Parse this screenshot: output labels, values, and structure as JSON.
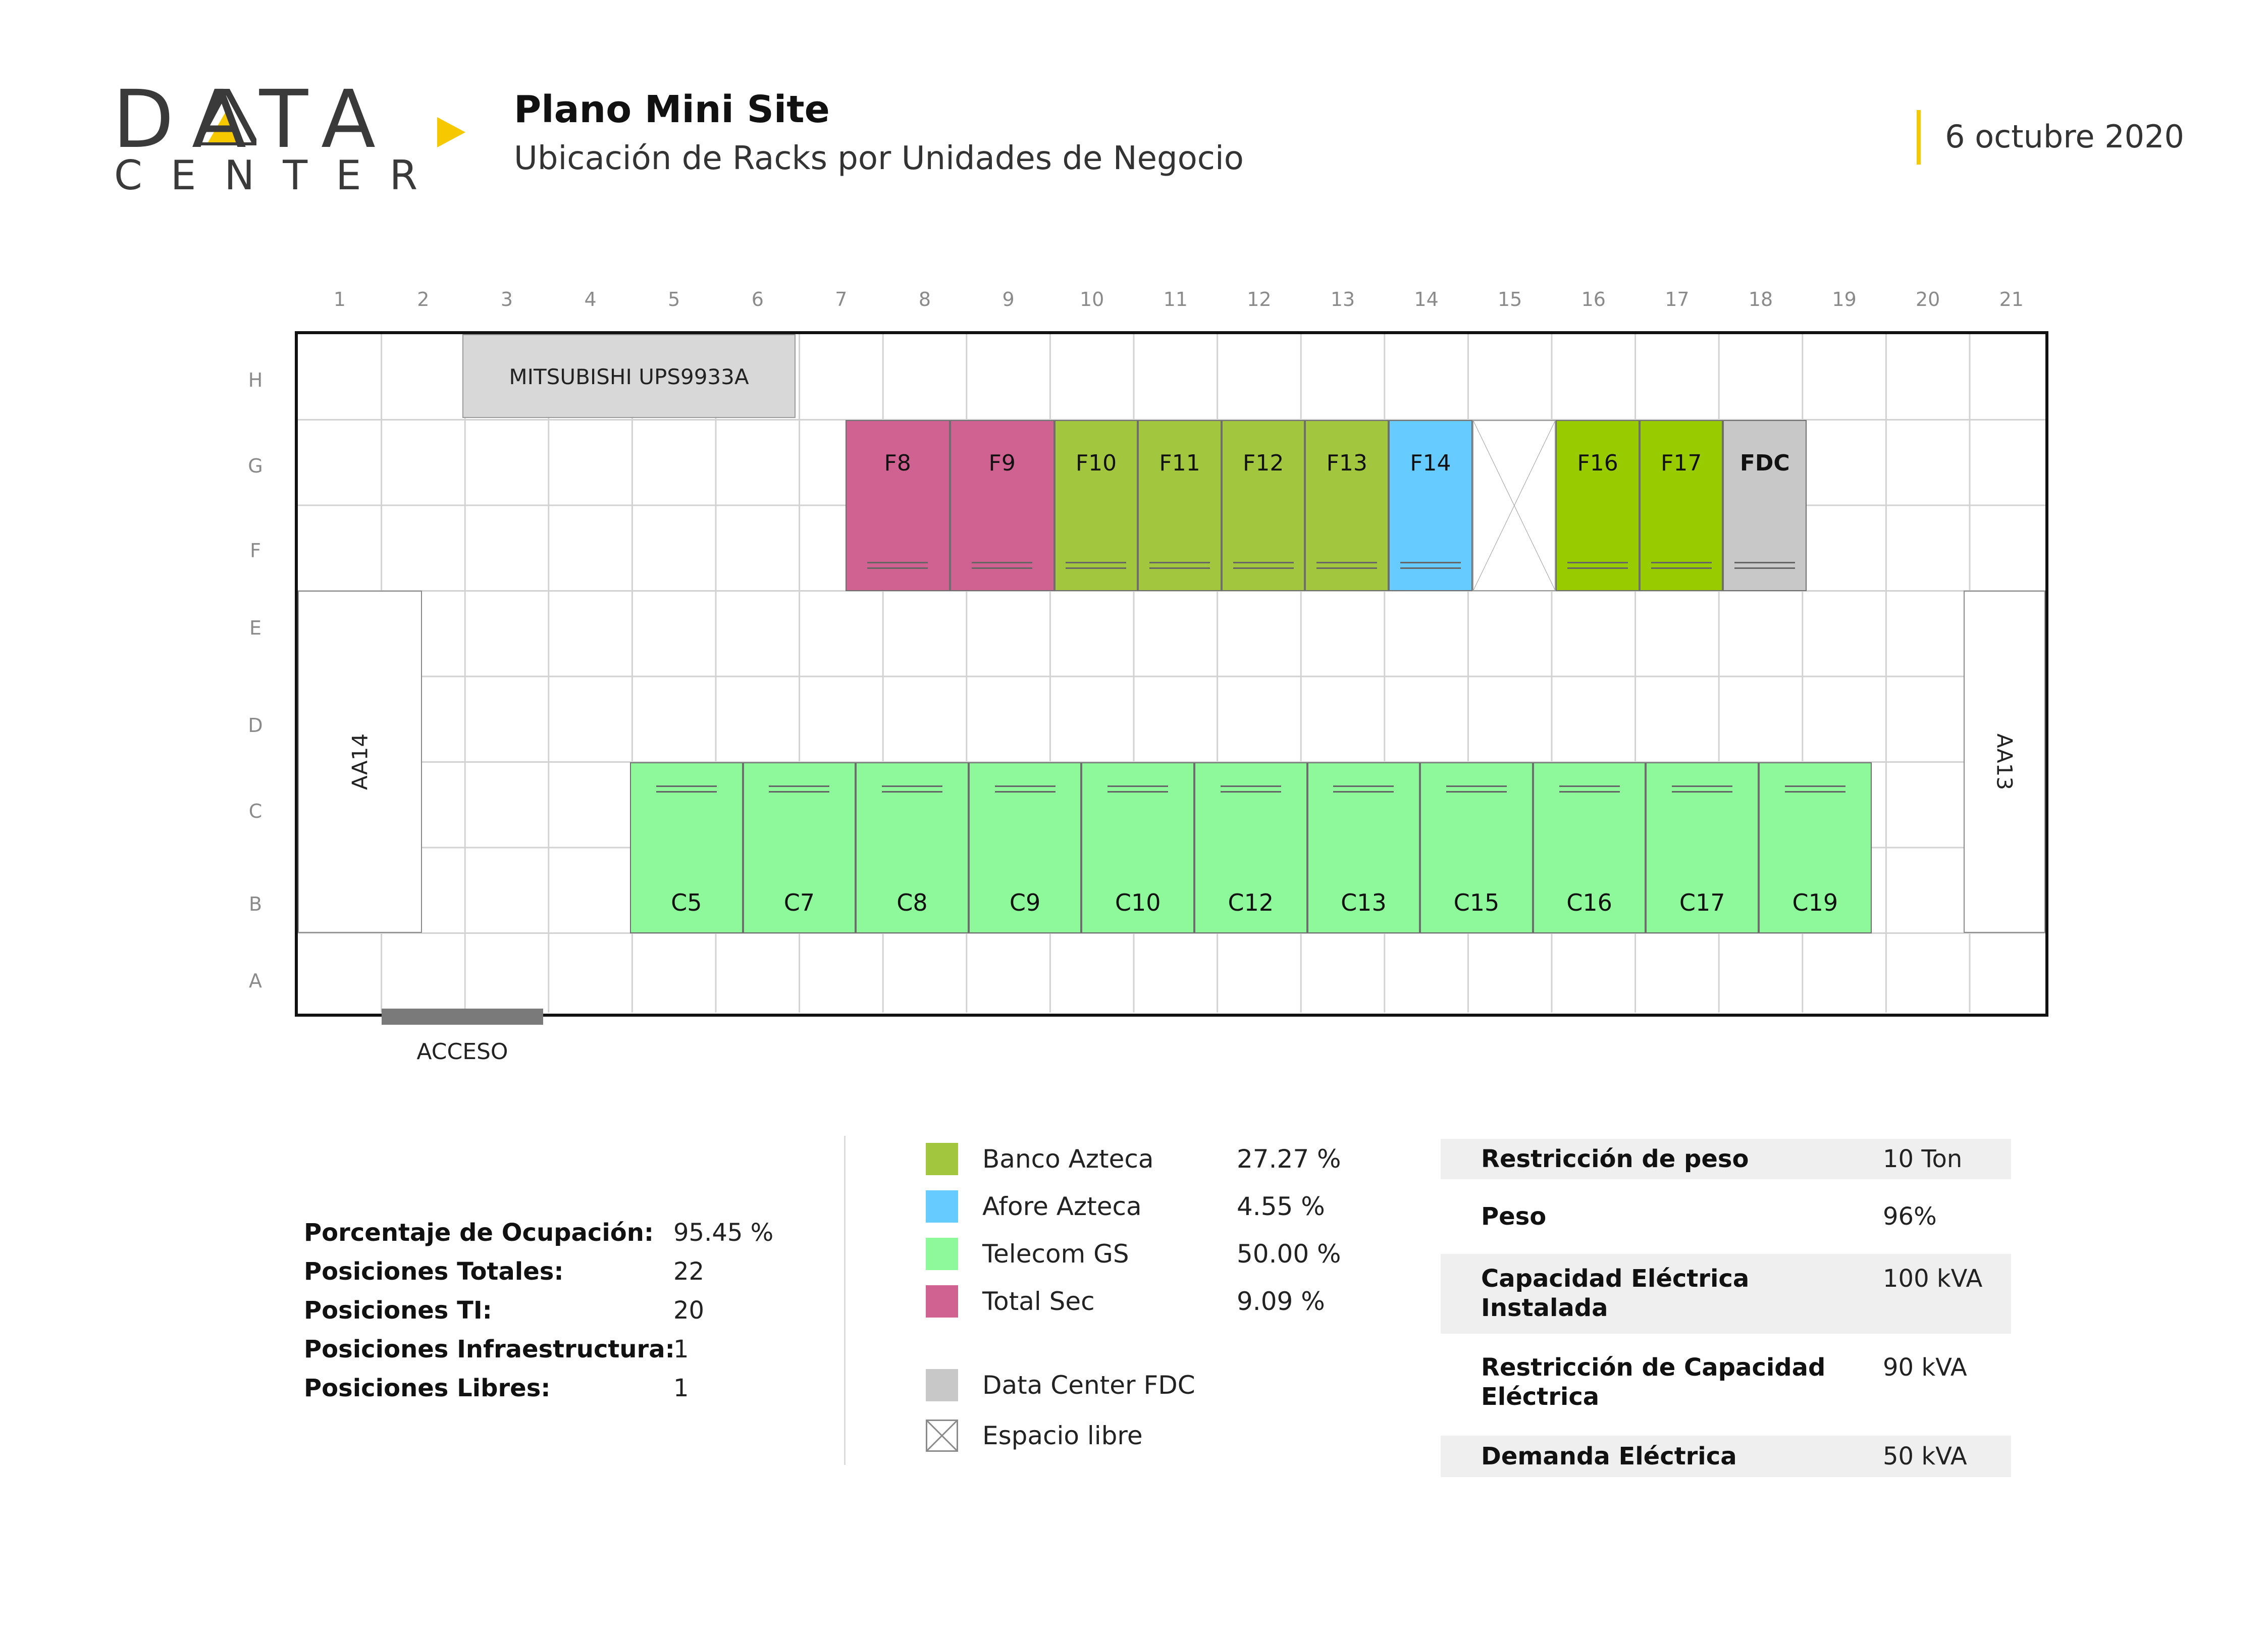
{
  "header": {
    "logo_word": "DATA",
    "logo_sub": "CENTER",
    "title": "Plano Mini Site",
    "subtitle": "Ubicación de Racks por Unidades de Negocio",
    "date": "6 octubre 2020"
  },
  "colors": {
    "accent_yellow": "#f5c800",
    "banco_azteca": "#a2c73f",
    "banco_azteca_bright": "#99cc00",
    "afore_azteca": "#66ccff",
    "telecom_gs": "#8ef99b",
    "total_sec": "#d06292",
    "data_center_fdc": "#c8c8c8",
    "infrastructure": "#d8d8d8"
  },
  "floor_plan": {
    "columns": [
      "1",
      "2",
      "3",
      "4",
      "5",
      "6",
      "7",
      "8",
      "9",
      "10",
      "11",
      "12",
      "13",
      "14",
      "15",
      "16",
      "17",
      "18",
      "19",
      "20",
      "21"
    ],
    "rows": [
      "H",
      "G",
      "F",
      "E",
      "D",
      "C",
      "B",
      "A"
    ],
    "infrastructure": [
      {
        "label": "MITSUBISHI UPS9933A"
      }
    ],
    "air_units": [
      {
        "label": "AA14"
      },
      {
        "label": "AA13"
      }
    ],
    "access_label": "ACCESO",
    "racks_top": [
      {
        "label": "F8",
        "unit": "total_sec",
        "col": 7.55,
        "span": 1.25
      },
      {
        "label": "F9",
        "unit": "total_sec",
        "col": 8.8,
        "span": 1.25
      },
      {
        "label": "F10",
        "unit": "banco_azteca",
        "col": 10.05,
        "span": 1
      },
      {
        "label": "F11",
        "unit": "banco_azteca",
        "col": 11.05,
        "span": 1
      },
      {
        "label": "F12",
        "unit": "banco_azteca",
        "col": 12.05,
        "span": 1
      },
      {
        "label": "F13",
        "unit": "banco_azteca",
        "col": 13.05,
        "span": 1
      },
      {
        "label": "F14",
        "unit": "afore_azteca",
        "col": 14.05,
        "span": 1
      },
      {
        "label": "",
        "unit": "free",
        "col": 15.05,
        "span": 1
      },
      {
        "label": "F16",
        "unit": "banco_azteca_bright",
        "col": 16.05,
        "span": 1
      },
      {
        "label": "F17",
        "unit": "banco_azteca_bright",
        "col": 17.05,
        "span": 1
      },
      {
        "label": "FDC",
        "unit": "data_center_fdc",
        "col": 18.05,
        "span": 1
      }
    ],
    "racks_bottom": [
      {
        "label": "C5",
        "unit": "telecom_gs"
      },
      {
        "label": "C7",
        "unit": "telecom_gs"
      },
      {
        "label": "C8",
        "unit": "telecom_gs"
      },
      {
        "label": "C9",
        "unit": "telecom_gs"
      },
      {
        "label": "C10",
        "unit": "telecom_gs"
      },
      {
        "label": "C12",
        "unit": "telecom_gs"
      },
      {
        "label": "C13",
        "unit": "telecom_gs"
      },
      {
        "label": "C15",
        "unit": "telecom_gs"
      },
      {
        "label": "C16",
        "unit": "telecom_gs"
      },
      {
        "label": "C17",
        "unit": "telecom_gs"
      },
      {
        "label": "C19",
        "unit": "telecom_gs"
      }
    ]
  },
  "stats": [
    {
      "label": "Porcentaje de Ocupación:",
      "value": "95.45 %"
    },
    {
      "label": "Posiciones Totales:",
      "value": "22"
    },
    {
      "label": "Posiciones TI:",
      "value": "20"
    },
    {
      "label": "Posiciones Infraestructura:",
      "value": "1"
    },
    {
      "label": "Posiciones Libres:",
      "value": "1"
    }
  ],
  "legend": [
    {
      "name": "Banco Azteca",
      "percent": "27.27 %",
      "color": "#a2c73f"
    },
    {
      "name": "Afore Azteca",
      "percent": "4.55 %",
      "color": "#66ccff"
    },
    {
      "name": "Telecom GS",
      "percent": "50.00 %",
      "color": "#8ef99b"
    },
    {
      "name": "Total Sec",
      "percent": "9.09 %",
      "color": "#d06292"
    },
    {
      "name": "Data Center FDC",
      "percent": "",
      "color": "#c8c8c8"
    },
    {
      "name": "Espacio libre",
      "percent": "",
      "color": "free"
    }
  ],
  "specs": [
    {
      "label": "Restricción de peso",
      "value": "10 Ton"
    },
    {
      "label": "Peso",
      "value": "96%"
    },
    {
      "label": "Capacidad Eléctrica Instalada",
      "value": "100 kVA"
    },
    {
      "label": "Restricción de Capacidad Eléctrica",
      "value": "90 kVA"
    },
    {
      "label": "Demanda Eléctrica",
      "value": "50 kVA"
    }
  ]
}
